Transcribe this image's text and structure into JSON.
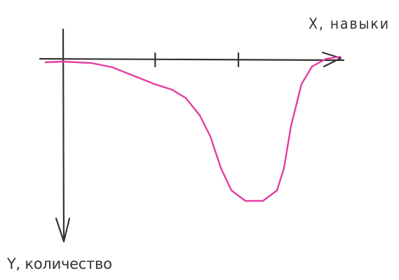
{
  "chart_data": {
    "type": "line",
    "x_label": "X, навыки",
    "y_label": "Y, количество",
    "xlim": [
      -0.26,
      3.2
    ],
    "ylim": [
      -0.44,
      2.6
    ],
    "y_direction": "down",
    "xticks": [
      1.05,
      2
    ],
    "series": [
      {
        "color": "#e33d9f",
        "x": [
          -0.2,
          0,
          0.32,
          0.56,
          0.8,
          1.04,
          1.24,
          1.4,
          1.56,
          1.68,
          1.8,
          1.92,
          2.08,
          2.28,
          2.44,
          2.52,
          2.6,
          2.72,
          2.84,
          3.0,
          3.16
        ],
        "values": [
          0.03,
          0.02,
          0.04,
          0.1,
          0.22,
          0.34,
          0.42,
          0.54,
          0.79,
          1.09,
          1.54,
          1.86,
          2.01,
          2.01,
          1.86,
          1.54,
          0.94,
          0.34,
          0.09,
          -0.02,
          -0.05
        ]
      }
    ]
  }
}
